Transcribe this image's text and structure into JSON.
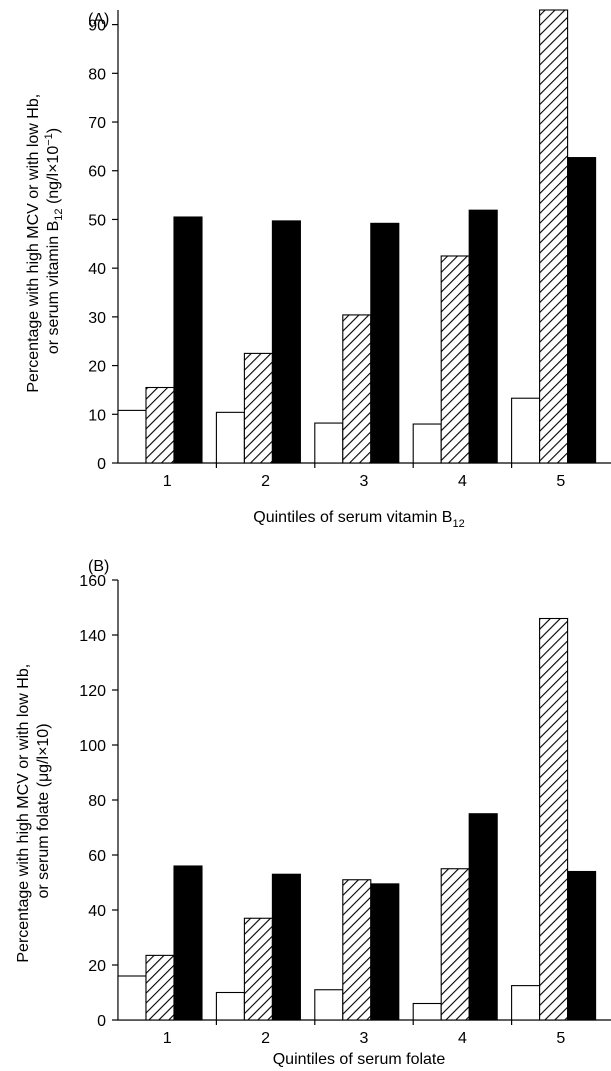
{
  "chart_data": [
    {
      "type": "bar",
      "panel_label": "(A)",
      "ylabel_line1": "Percentage with high MCV or with low Hb,",
      "ylabel_line2_pre": "or serum vitamin B",
      "ylabel_line2_sub": "12",
      "ylabel_line2_mid": " (ng/l×10",
      "ylabel_line2_sup": "−1",
      "ylabel_line2_post": ")",
      "xlabel_pre": "Quintiles of serum vitamin B",
      "xlabel_sub": "12",
      "categories": [
        "1",
        "2",
        "3",
        "4",
        "5"
      ],
      "ylim": [
        0,
        93
      ],
      "yticks": [
        "0",
        "10",
        "20",
        "30",
        "40",
        "50",
        "60",
        "70",
        "80",
        "90"
      ],
      "series": [
        {
          "fill": "white",
          "values": [
            10.8,
            10.4,
            8.2,
            8.0,
            13.3
          ]
        },
        {
          "fill": "hatched",
          "values": [
            15.5,
            22.5,
            30.4,
            42.5,
            93
          ]
        },
        {
          "fill": "black",
          "values": [
            50.5,
            49.7,
            49.2,
            51.9,
            62.7
          ]
        }
      ]
    },
    {
      "type": "bar",
      "panel_label": "(B)",
      "ylabel_line1": "Percentage with high MCV or with low Hb,",
      "ylabel_line2": "or serum folate (μg/l×10)",
      "xlabel": "Quintiles of serum folate",
      "categories": [
        "1",
        "2",
        "3",
        "4",
        "5"
      ],
      "ylim": [
        0,
        160
      ],
      "yticks": [
        "0",
        "20",
        "40",
        "60",
        "80",
        "100",
        "120",
        "140",
        "160"
      ],
      "series": [
        {
          "fill": "white",
          "values": [
            16,
            10,
            11,
            6,
            12.5
          ]
        },
        {
          "fill": "hatched",
          "values": [
            23.5,
            37,
            51,
            55,
            146
          ]
        },
        {
          "fill": "black",
          "values": [
            56,
            53,
            49.5,
            75,
            54
          ]
        }
      ]
    }
  ]
}
